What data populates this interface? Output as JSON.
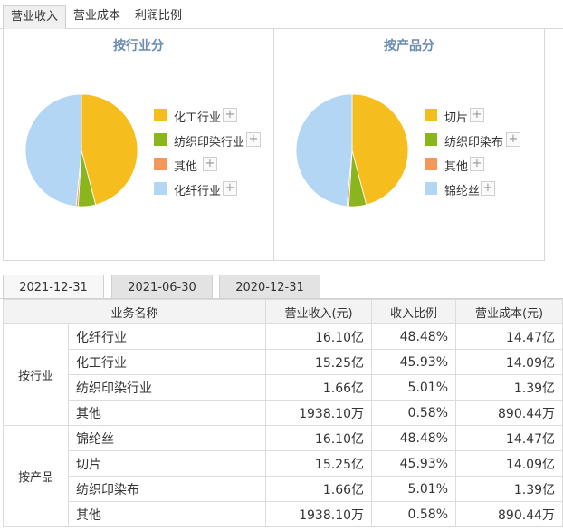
{
  "top_tabs": [
    {
      "label": "营业收入",
      "active": true
    },
    {
      "label": "营业成本",
      "active": false
    },
    {
      "label": "利润比例",
      "active": false
    }
  ],
  "charts": [
    {
      "title": "按行业分",
      "legend": [
        {
          "label": "化工行业",
          "color": "#f5bd1e"
        },
        {
          "label": "纺织印染行业",
          "color": "#8ab51d"
        },
        {
          "label": "其他",
          "color": "#f4975a"
        },
        {
          "label": "化纤行业",
          "color": "#b3d6f5"
        }
      ]
    },
    {
      "title": "按产品分",
      "legend": [
        {
          "label": "切片",
          "color": "#f5bd1e"
        },
        {
          "label": "纺织印染布",
          "color": "#8ab51d"
        },
        {
          "label": "其他",
          "color": "#f4975a"
        },
        {
          "label": "锦纶丝",
          "color": "#b3d6f5"
        }
      ]
    }
  ],
  "chart_data": [
    {
      "type": "pie",
      "title": "按行业分",
      "categories": [
        "化工行业",
        "纺织印染行业",
        "其他",
        "化纤行业"
      ],
      "values": [
        45.93,
        5.01,
        0.58,
        48.48
      ]
    },
    {
      "type": "pie",
      "title": "按产品分",
      "categories": [
        "切片",
        "纺织印染布",
        "其他",
        "锦纶丝"
      ],
      "values": [
        45.93,
        5.01,
        0.58,
        48.48
      ]
    }
  ],
  "date_tabs": [
    {
      "label": "2021-12-31",
      "active": true
    },
    {
      "label": "2021-06-30",
      "active": false
    },
    {
      "label": "2020-12-31",
      "active": false
    }
  ],
  "table": {
    "headers": [
      "业务名称",
      "营业收入(元)",
      "收入比例",
      "营业成本(元)"
    ],
    "groups": [
      {
        "label": "按行业",
        "rows": [
          {
            "name": "化纤行业",
            "revenue": "16.10亿",
            "ratio": "48.48%",
            "cost": "14.47亿"
          },
          {
            "name": "化工行业",
            "revenue": "15.25亿",
            "ratio": "45.93%",
            "cost": "14.09亿"
          },
          {
            "name": "纺织印染行业",
            "revenue": "1.66亿",
            "ratio": "5.01%",
            "cost": "1.39亿"
          },
          {
            "name": "其他",
            "revenue": "1938.10万",
            "ratio": "0.58%",
            "cost": "890.44万"
          }
        ]
      },
      {
        "label": "按产品",
        "rows": [
          {
            "name": "锦纶丝",
            "revenue": "16.10亿",
            "ratio": "48.48%",
            "cost": "14.47亿"
          },
          {
            "name": "切片",
            "revenue": "15.25亿",
            "ratio": "45.93%",
            "cost": "14.09亿"
          },
          {
            "name": "纺织印染布",
            "revenue": "1.66亿",
            "ratio": "5.01%",
            "cost": "1.39亿"
          },
          {
            "name": "其他",
            "revenue": "1938.10万",
            "ratio": "0.58%",
            "cost": "890.44万"
          }
        ]
      }
    ]
  }
}
